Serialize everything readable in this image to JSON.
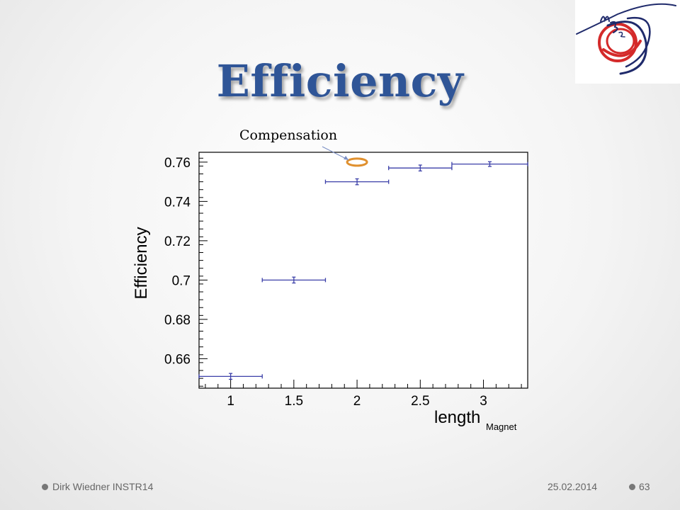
{
  "slide": {
    "title": "Efficiency",
    "footer_author": "Dirk Wiedner INSTR14",
    "footer_date": "25.02.2014",
    "footer_page": "63"
  },
  "colors": {
    "title": "#2f5597",
    "data": "#3b3fa8",
    "highlight": "#e0902e",
    "logo_red": "#d42a2a",
    "logo_navy": "#1f2a6b"
  },
  "chart_data": {
    "type": "scatter",
    "ylabel": "Efficiency",
    "xlabel": "length",
    "xlabel_sub": "Magnet",
    "xlim": [
      0.75,
      3.35
    ],
    "ylim": [
      0.645,
      0.765
    ],
    "xticks": [
      1,
      1.5,
      2,
      2.5,
      3
    ],
    "xtick_labels": [
      "1",
      "1.5",
      "2",
      "2.5",
      "3"
    ],
    "yticks": [
      0.66,
      0.68,
      0.7,
      0.72,
      0.74,
      0.76
    ],
    "ytick_labels": [
      "0.66",
      "0.68",
      "0.7",
      "0.72",
      "0.74",
      "0.76"
    ],
    "points": [
      {
        "x": 1.0,
        "xerr": 0.25,
        "y": 0.651,
        "yerr": 0.0015
      },
      {
        "x": 1.5,
        "xerr": 0.25,
        "y": 0.7,
        "yerr": 0.0015
      },
      {
        "x": 2.0,
        "xerr": 0.25,
        "y": 0.75,
        "yerr": 0.0015
      },
      {
        "x": 2.5,
        "xerr": 0.25,
        "y": 0.757,
        "yerr": 0.0015
      },
      {
        "x": 3.05,
        "xerr": 0.3,
        "y": 0.759,
        "yerr": 0.0012
      }
    ],
    "annotation": {
      "text": "Compensation",
      "x": 2.0,
      "y": 0.76
    },
    "grid": false
  }
}
